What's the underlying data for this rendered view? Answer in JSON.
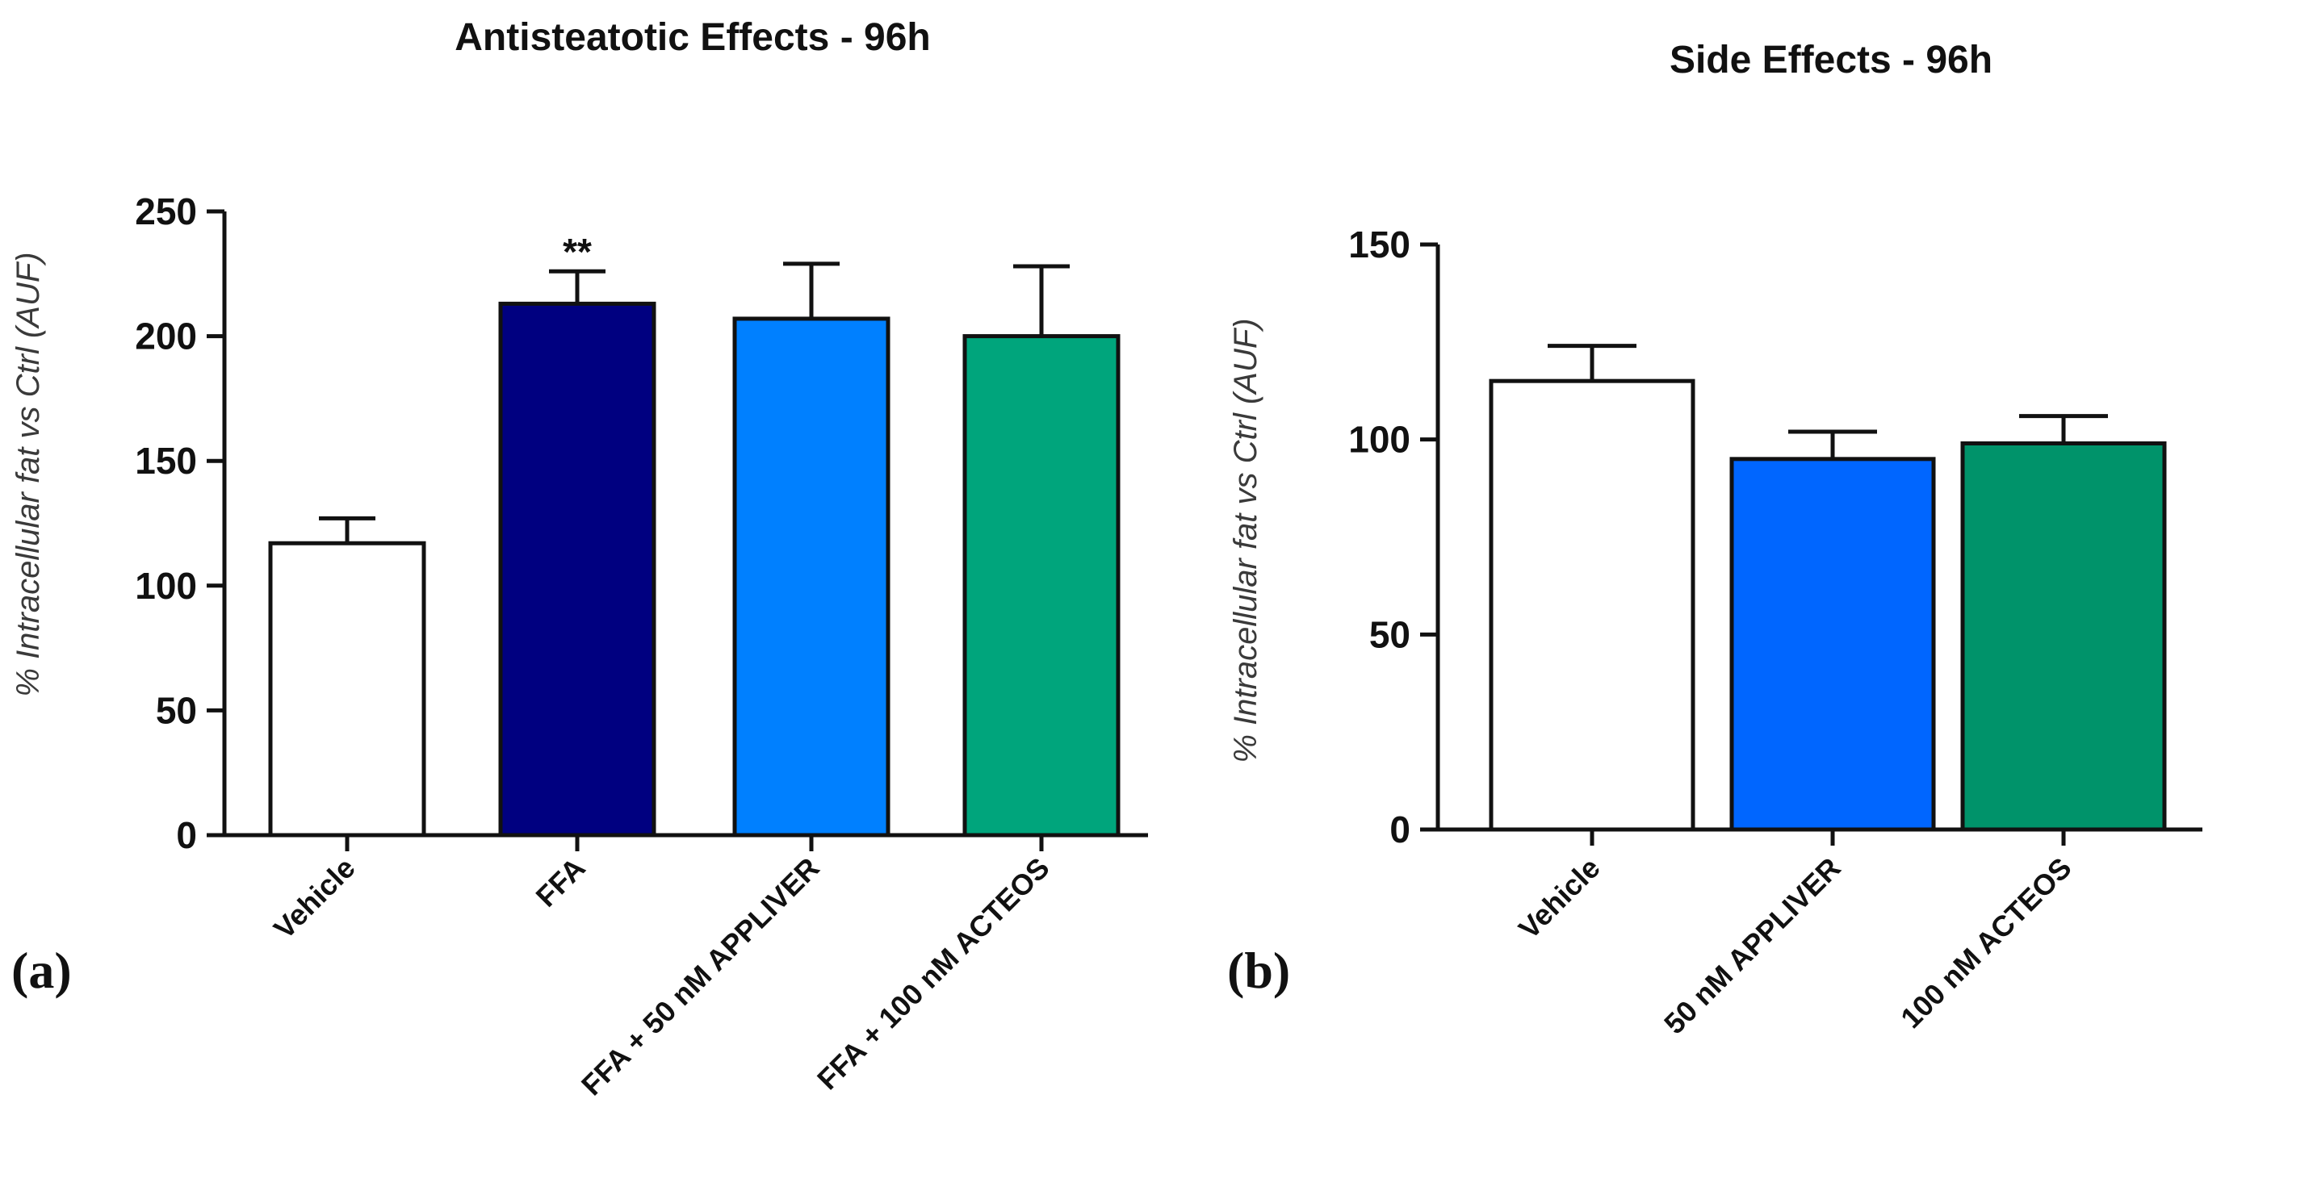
{
  "chart_data": [
    {
      "type": "bar",
      "panel_label": "(a)",
      "title": "Antisteatotic Effects - 96h",
      "xlabel": "",
      "ylabel": "% Intracellular fat vs Ctrl (AUF)",
      "ylim": [
        0,
        250
      ],
      "yticks": [
        "0",
        "50",
        "100",
        "150",
        "200",
        "250"
      ],
      "grid": false,
      "categories": [
        "Vehicle",
        "FFA",
        "FFA + 50 nM APPLIVER",
        "FFA + 100 nM ACTEOS"
      ],
      "values": [
        117,
        213,
        207,
        200
      ],
      "errors": [
        10,
        13,
        22,
        28
      ],
      "colors": [
        "#ffffff",
        "#000080",
        "#0080ff",
        "#00a57c"
      ],
      "annotations": [
        {
          "category": "FFA",
          "text": "**"
        }
      ]
    },
    {
      "type": "bar",
      "panel_label": "(b)",
      "title": "Side Effects - 96h",
      "xlabel": "",
      "ylabel": "% Intracellular fat vs Ctrl (AUF)",
      "ylim": [
        0,
        150
      ],
      "yticks": [
        "0",
        "50",
        "100",
        "150"
      ],
      "grid": false,
      "categories": [
        "Vehicle",
        "50 nM APPLIVER",
        "100 nM ACTEOS"
      ],
      "values": [
        115,
        95,
        99
      ],
      "errors": [
        9,
        7,
        7
      ],
      "colors": [
        "#ffffff",
        "#0066ff",
        "#00936a"
      ],
      "annotations": []
    }
  ]
}
